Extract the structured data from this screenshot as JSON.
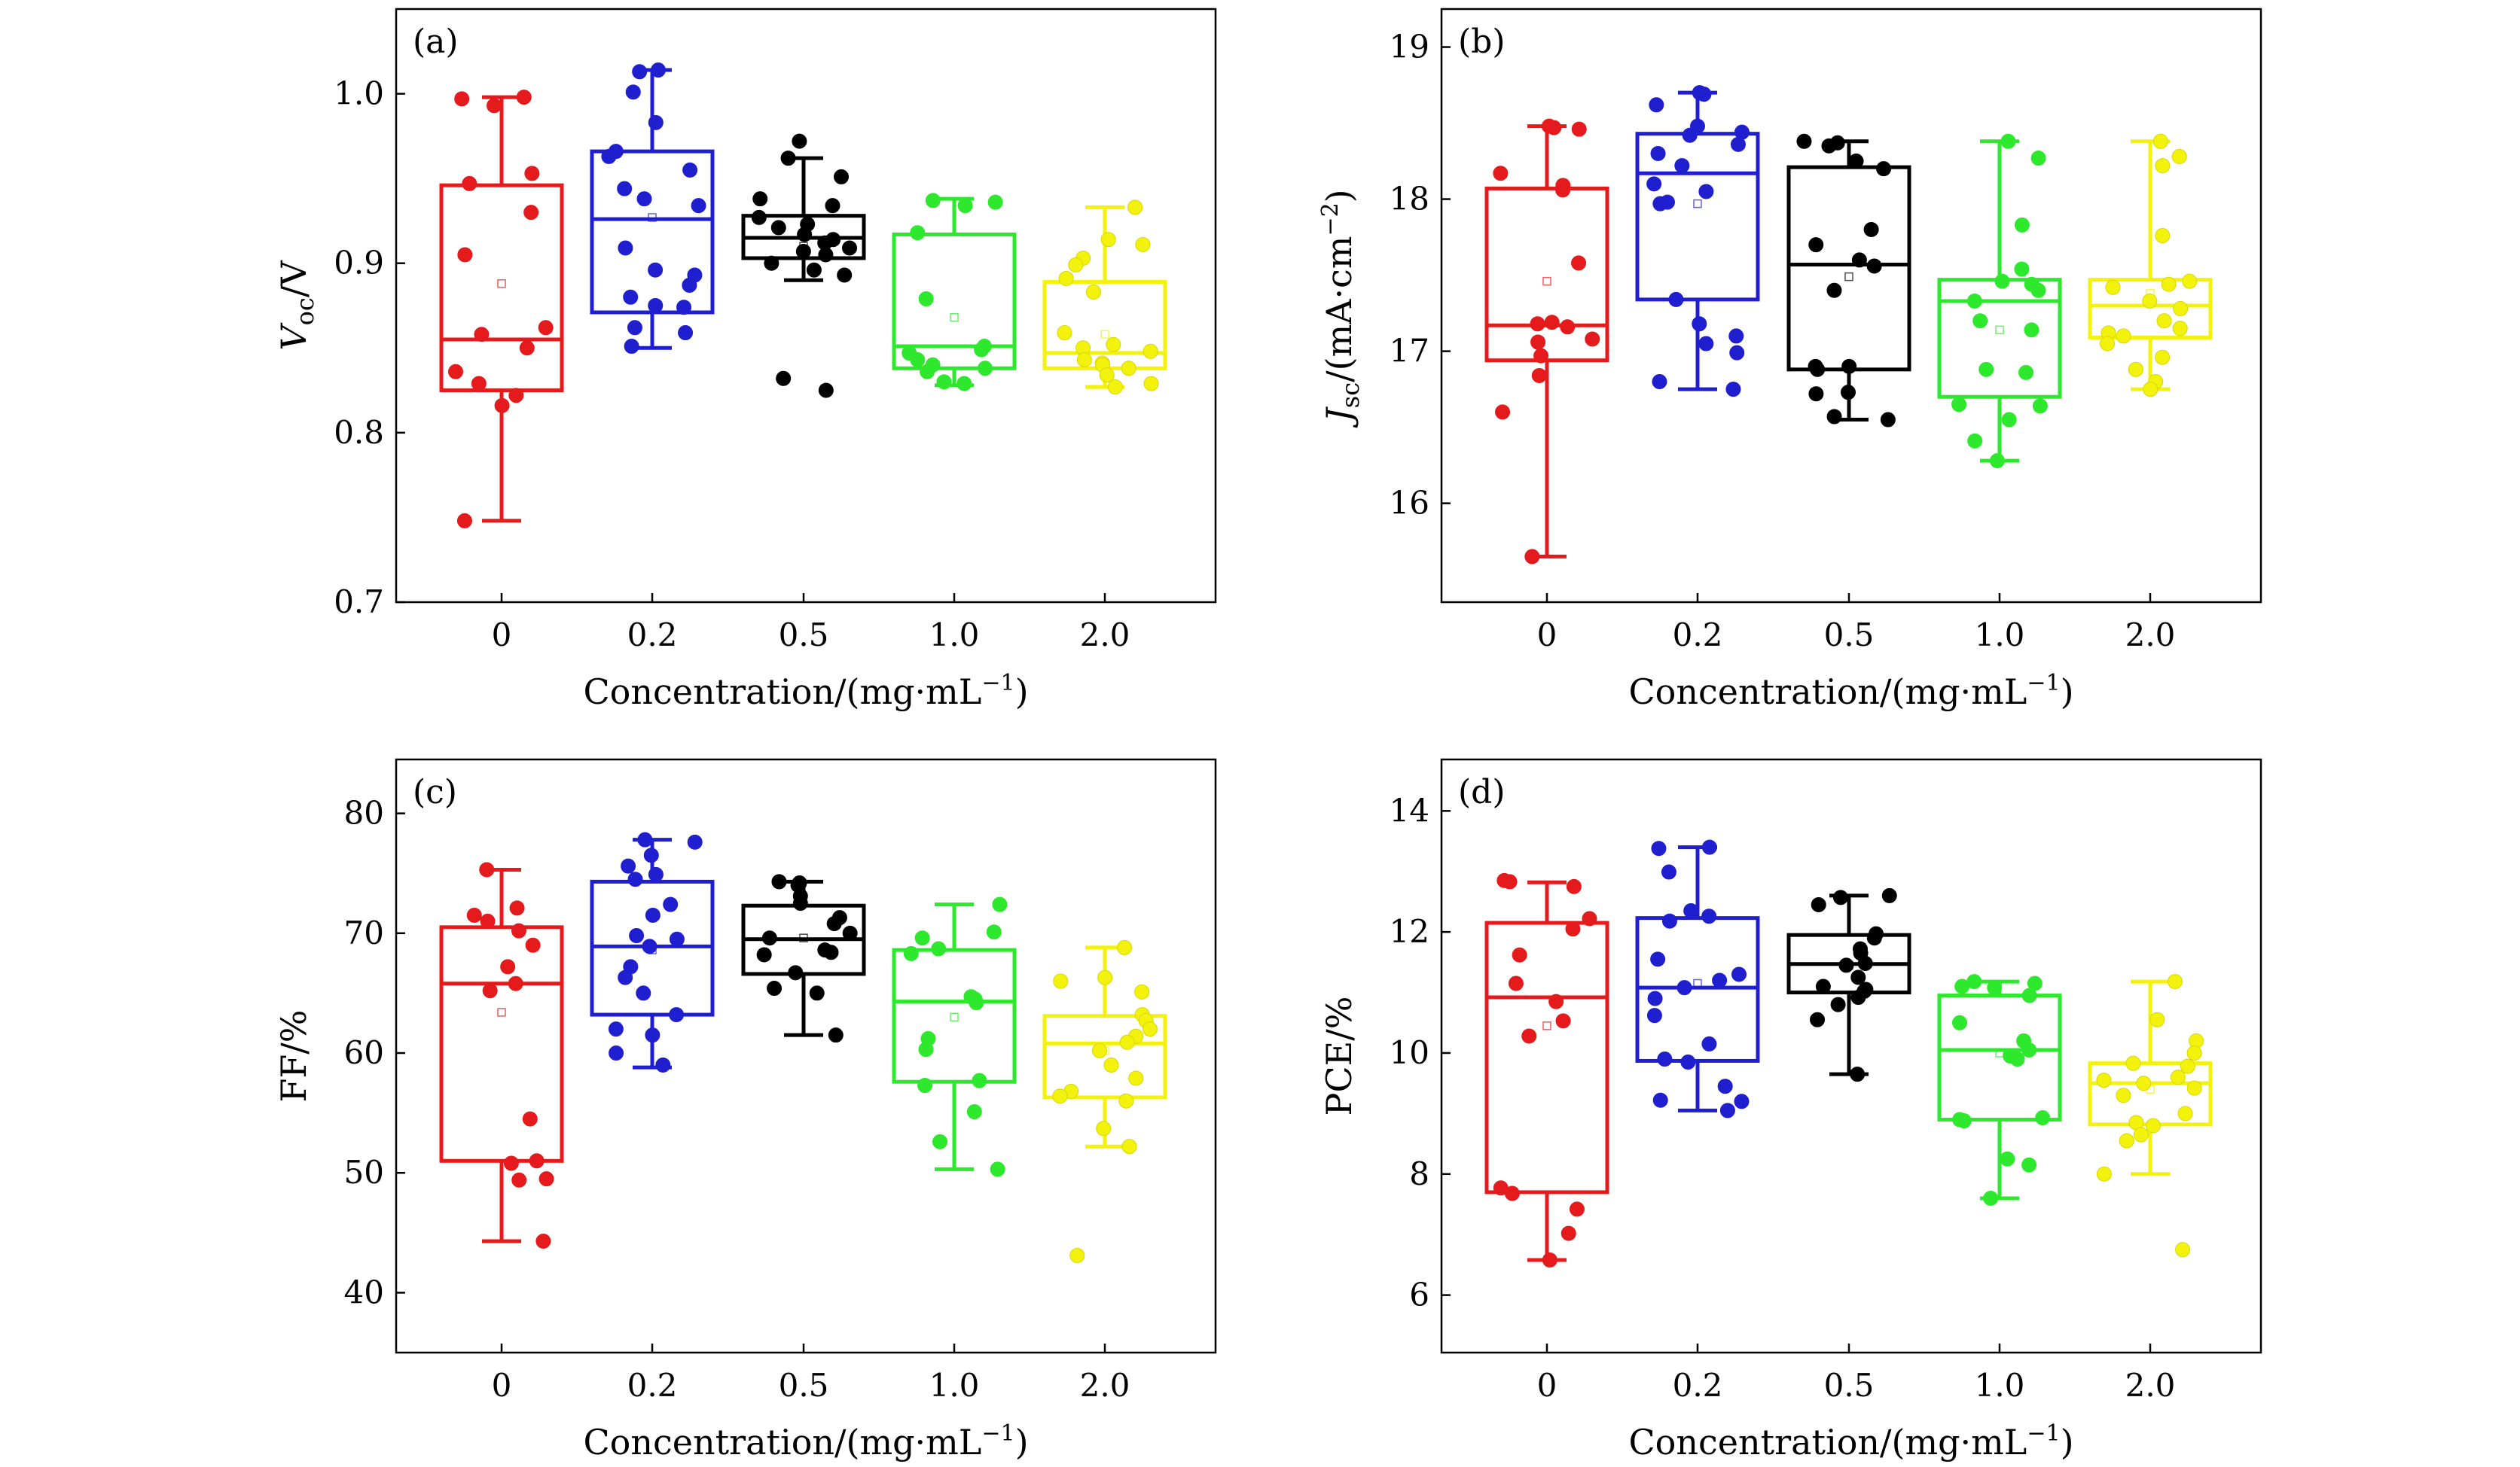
{
  "figure": {
    "background": "#ffffff",
    "group_colors": [
      "#e41a1c",
      "#1f1fd0",
      "#000000",
      "#2ee82e",
      "#f2f20c"
    ]
  },
  "chart_data": [
    {
      "type": "box",
      "panel": "(a)",
      "title": "",
      "ylabel": {
        "main": "V",
        "sub": "oc",
        "rest": "/V"
      },
      "xlabel": {
        "main": "Concentration/(mg·mL",
        "sup": "−1",
        "rest": ")"
      },
      "categories": [
        "0",
        "0.2",
        "0.5",
        "1.0",
        "2.0"
      ],
      "ylim": [
        0.7,
        1.05
      ],
      "yticks": [
        0.7,
        0.8,
        0.9,
        1.0
      ],
      "ytick_labels": [
        "0.7",
        "0.8",
        "0.9",
        "1.0"
      ],
      "series": [
        {
          "name": "0",
          "q1": 0.825,
          "median": 0.855,
          "q3": 0.946,
          "whisker_low": 0.748,
          "whisker_high": 0.998,
          "mean": 0.888,
          "points": [
            0.998,
            0.997,
            0.993,
            0.953,
            0.947,
            0.93,
            0.905,
            0.862,
            0.858,
            0.85,
            0.836,
            0.829,
            0.822,
            0.816,
            0.748
          ]
        },
        {
          "name": "0.2",
          "q1": 0.871,
          "median": 0.926,
          "q3": 0.966,
          "whisker_low": 0.85,
          "whisker_high": 1.014,
          "mean": 0.927,
          "points": [
            1.014,
            1.013,
            1.001,
            0.983,
            0.966,
            0.963,
            0.955,
            0.944,
            0.938,
            0.934,
            0.909,
            0.896,
            0.893,
            0.887,
            0.88,
            0.875,
            0.874,
            0.862,
            0.859,
            0.851
          ]
        },
        {
          "name": "0.5",
          "q1": 0.903,
          "median": 0.915,
          "q3": 0.928,
          "whisker_low": 0.89,
          "whisker_high": 0.962,
          "mean": 0.91,
          "points": [
            0.972,
            0.962,
            0.951,
            0.938,
            0.934,
            0.927,
            0.923,
            0.921,
            0.917,
            0.914,
            0.912,
            0.909,
            0.907,
            0.905,
            0.9,
            0.896,
            0.893,
            0.832,
            0.825
          ]
        },
        {
          "name": "1.0",
          "q1": 0.838,
          "median": 0.851,
          "q3": 0.917,
          "whisker_low": 0.828,
          "whisker_high": 0.938,
          "mean": 0.868,
          "points": [
            0.937,
            0.936,
            0.934,
            0.918,
            0.879,
            0.851,
            0.849,
            0.847,
            0.843,
            0.84,
            0.838,
            0.836,
            0.83,
            0.829
          ]
        },
        {
          "name": "2.0",
          "q1": 0.838,
          "median": 0.847,
          "q3": 0.889,
          "whisker_low": 0.827,
          "whisker_high": 0.933,
          "mean": 0.858,
          "points": [
            0.933,
            0.914,
            0.911,
            0.903,
            0.899,
            0.891,
            0.883,
            0.859,
            0.852,
            0.85,
            0.848,
            0.843,
            0.841,
            0.84,
            0.838,
            0.834,
            0.829,
            0.827
          ]
        }
      ]
    },
    {
      "type": "box",
      "panel": "(b)",
      "title": "",
      "ylabel": {
        "main": "J",
        "sub": "sc",
        "rest": "/(mA·cm",
        "sup": "−2",
        "rest2": ")"
      },
      "xlabel": {
        "main": "Concentration/(mg·mL",
        "sup": "−1",
        "rest": ")"
      },
      "categories": [
        "0",
        "0.2",
        "0.5",
        "1.0",
        "2.0"
      ],
      "ylim": [
        15.35,
        19.25
      ],
      "yticks": [
        16,
        17,
        18,
        19
      ],
      "ytick_labels": [
        "16",
        "17",
        "18",
        "19"
      ],
      "series": [
        {
          "name": "0",
          "q1": 16.94,
          "median": 17.17,
          "q3": 18.07,
          "whisker_low": 15.65,
          "whisker_high": 18.48,
          "mean": 17.46,
          "points": [
            18.48,
            18.47,
            18.46,
            18.17,
            18.09,
            18.06,
            17.58,
            17.19,
            17.18,
            17.16,
            17.08,
            17.06,
            16.97,
            16.84,
            16.6,
            15.65
          ]
        },
        {
          "name": "0.2",
          "q1": 17.34,
          "median": 18.17,
          "q3": 18.43,
          "whisker_low": 16.75,
          "whisker_high": 18.7,
          "mean": 17.97,
          "points": [
            18.7,
            18.69,
            18.62,
            18.48,
            18.44,
            18.42,
            18.36,
            18.3,
            18.22,
            18.1,
            18.05,
            17.98,
            17.97,
            17.34,
            17.18,
            17.1,
            17.05,
            16.99,
            16.8,
            16.75
          ]
        },
        {
          "name": "0.5",
          "q1": 16.88,
          "median": 17.57,
          "q3": 18.21,
          "whisker_low": 16.55,
          "whisker_high": 18.38,
          "mean": 17.49,
          "points": [
            18.38,
            18.37,
            18.35,
            18.25,
            18.2,
            17.8,
            17.7,
            17.6,
            17.56,
            17.4,
            16.9,
            16.9,
            16.88,
            16.73,
            16.72,
            16.57,
            16.55
          ]
        },
        {
          "name": "1.0",
          "q1": 16.7,
          "median": 17.33,
          "q3": 17.47,
          "whisker_low": 16.28,
          "whisker_high": 18.38,
          "mean": 17.14,
          "points": [
            18.38,
            18.27,
            17.83,
            17.54,
            17.46,
            17.44,
            17.4,
            17.33,
            17.2,
            17.14,
            16.88,
            16.86,
            16.65,
            16.64,
            16.55,
            16.41,
            16.28
          ]
        },
        {
          "name": "2.0",
          "q1": 17.09,
          "median": 17.3,
          "q3": 17.47,
          "whisker_low": 16.75,
          "whisker_high": 18.38,
          "mean": 17.38,
          "points": [
            18.38,
            18.28,
            18.22,
            17.76,
            17.46,
            17.44,
            17.42,
            17.33,
            17.28,
            17.2,
            17.15,
            17.12,
            17.1,
            17.05,
            16.96,
            16.88,
            16.8,
            16.75
          ]
        }
      ]
    },
    {
      "type": "box",
      "panel": "(c)",
      "title": "",
      "ylabel": {
        "main": "FF/%"
      },
      "xlabel": {
        "main": "Concentration/(mg·mL",
        "sup": "−1",
        "rest": ")"
      },
      "categories": [
        "0",
        "0.2",
        "0.5",
        "1.0",
        "2.0"
      ],
      "ylim": [
        35,
        84.5
      ],
      "yticks": [
        40,
        50,
        60,
        70,
        80
      ],
      "ytick_labels": [
        "40",
        "50",
        "60",
        "70",
        "80"
      ],
      "series": [
        {
          "name": "0",
          "q1": 51.0,
          "median": 65.8,
          "q3": 70.5,
          "whisker_low": 44.3,
          "whisker_high": 75.3,
          "mean": 63.4,
          "points": [
            75.3,
            72.1,
            71.5,
            71.0,
            70.2,
            69.0,
            67.2,
            65.8,
            65.2,
            54.5,
            51.0,
            50.8,
            49.5,
            49.4,
            44.3
          ]
        },
        {
          "name": "0.2",
          "q1": 63.2,
          "median": 68.9,
          "q3": 74.3,
          "whisker_low": 58.8,
          "whisker_high": 77.8,
          "mean": 68.6,
          "points": [
            77.8,
            77.6,
            76.5,
            75.6,
            74.9,
            74.5,
            72.4,
            71.5,
            69.8,
            69.5,
            68.9,
            67.2,
            66.3,
            65.0,
            63.2,
            62.0,
            61.5,
            60.0,
            59.0
          ]
        },
        {
          "name": "0.5",
          "q1": 66.6,
          "median": 69.5,
          "q3": 72.3,
          "whisker_low": 61.5,
          "whisker_high": 74.3,
          "mean": 69.6,
          "points": [
            74.3,
            74.2,
            74.0,
            73.1,
            72.5,
            71.3,
            70.8,
            70.0,
            69.6,
            68.6,
            68.4,
            68.2,
            66.7,
            65.4,
            65.0,
            61.5
          ]
        },
        {
          "name": "1.0",
          "q1": 57.6,
          "median": 64.3,
          "q3": 68.6,
          "whisker_low": 50.3,
          "whisker_high": 72.4,
          "mean": 63.0,
          "points": [
            72.4,
            70.1,
            69.6,
            68.7,
            68.3,
            64.7,
            64.5,
            64.2,
            61.2,
            60.3,
            57.7,
            57.3,
            55.1,
            52.6,
            50.3
          ]
        },
        {
          "name": "2.0",
          "q1": 56.3,
          "median": 60.8,
          "q3": 63.1,
          "whisker_low": 52.2,
          "whisker_high": 68.8,
          "mean": 60.2,
          "points": [
            68.8,
            66.3,
            66.0,
            65.1,
            63.2,
            62.7,
            62.0,
            61.4,
            60.9,
            60.2,
            59.0,
            57.9,
            56.8,
            56.4,
            56.0,
            53.7,
            52.2,
            43.1
          ]
        }
      ]
    },
    {
      "type": "box",
      "panel": "(d)",
      "title": "",
      "ylabel": {
        "main": "PCE/%"
      },
      "xlabel": {
        "main": "Concentration/(mg·mL",
        "sup": "−1",
        "rest": ")"
      },
      "categories": [
        "0",
        "0.2",
        "0.5",
        "1.0",
        "2.0"
      ],
      "ylim": [
        5.05,
        14.85
      ],
      "yticks": [
        6,
        8,
        10,
        12,
        14
      ],
      "ytick_labels": [
        "6",
        "8",
        "10",
        "12",
        "14"
      ],
      "series": [
        {
          "name": "0",
          "q1": 7.7,
          "median": 10.92,
          "q3": 12.15,
          "whisker_low": 6.58,
          "whisker_high": 12.82,
          "mean": 10.45,
          "points": [
            12.85,
            12.83,
            12.75,
            12.22,
            12.05,
            11.62,
            11.15,
            10.85,
            10.53,
            10.28,
            7.77,
            7.68,
            7.42,
            7.02,
            6.58
          ]
        },
        {
          "name": "0.2",
          "q1": 9.87,
          "median": 11.08,
          "q3": 12.23,
          "whisker_low": 9.05,
          "whisker_high": 13.4,
          "mean": 11.15,
          "points": [
            13.4,
            13.38,
            12.99,
            12.35,
            12.26,
            12.18,
            11.55,
            11.3,
            11.2,
            11.08,
            10.9,
            10.62,
            10.15,
            9.9,
            9.85,
            9.45,
            9.22,
            9.2,
            9.05
          ]
        },
        {
          "name": "0.5",
          "q1": 11.0,
          "median": 11.47,
          "q3": 11.95,
          "whisker_low": 9.65,
          "whisker_high": 12.6,
          "mean": 11.45,
          "points": [
            12.6,
            12.57,
            12.45,
            11.97,
            11.9,
            11.72,
            11.65,
            11.48,
            11.45,
            11.25,
            11.1,
            11.05,
            11.02,
            10.92,
            10.8,
            10.55,
            9.65
          ]
        },
        {
          "name": "1.0",
          "q1": 8.9,
          "median": 10.05,
          "q3": 10.95,
          "whisker_low": 7.6,
          "whisker_high": 11.18,
          "mean": 10.0,
          "points": [
            11.18,
            11.15,
            11.1,
            11.08,
            10.95,
            10.5,
            10.2,
            10.05,
            9.95,
            9.9,
            8.93,
            8.9,
            8.88,
            8.25,
            8.15,
            7.6
          ]
        },
        {
          "name": "2.0",
          "q1": 8.82,
          "median": 9.5,
          "q3": 9.83,
          "whisker_low": 8.0,
          "whisker_high": 11.18,
          "mean": 9.4,
          "points": [
            11.18,
            10.55,
            10.2,
            10.0,
            9.83,
            9.78,
            9.6,
            9.55,
            9.5,
            9.42,
            9.3,
            9.0,
            8.85,
            8.8,
            8.65,
            8.55,
            8.0,
            6.75
          ]
        }
      ]
    }
  ]
}
